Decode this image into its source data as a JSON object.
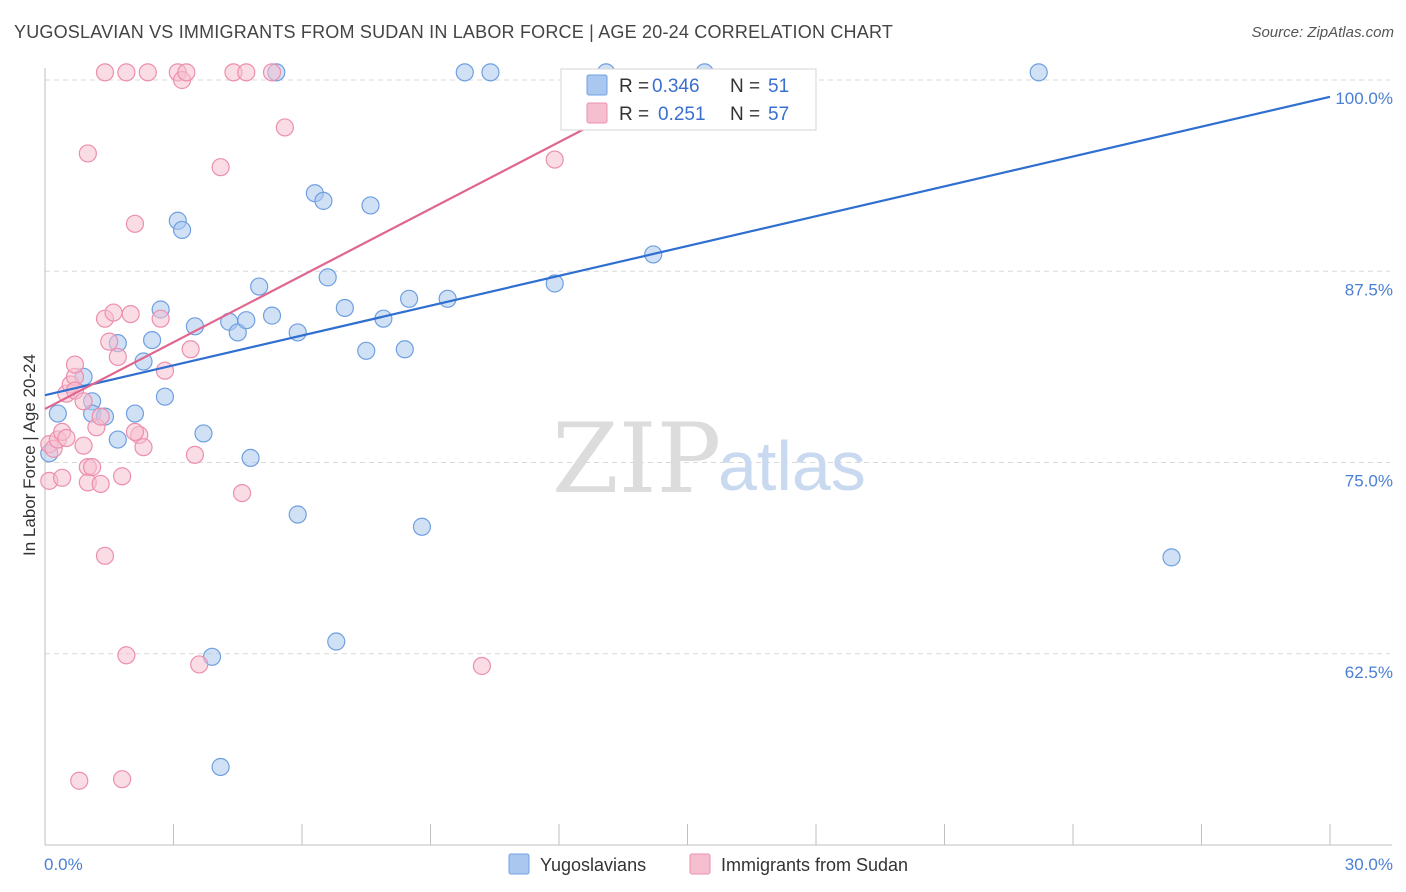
{
  "title": "YUGOSLAVIAN VS IMMIGRANTS FROM SUDAN IN LABOR FORCE | AGE 20-24 CORRELATION CHART",
  "source": "Source: ZipAtlas.com",
  "watermark": {
    "zip": "ZIP",
    "atlas": "atlas"
  },
  "stats": {
    "r_label": "R =",
    "n_label": "N =",
    "rows": [
      {
        "r": "0.346",
        "n": "51"
      },
      {
        "r": "0.251",
        "n": "57"
      }
    ]
  },
  "colors": {
    "blue_fill": "#aac8ef",
    "blue_stroke": "#6f9fe0",
    "blue_line": "#2f6fcf",
    "pink_fill": "#f6bfd0",
    "pink_stroke": "#ec8fae",
    "pink_line": "#e0668f",
    "grid": "#d8d8d8",
    "axis_text": "#4a7fd4"
  },
  "chart_data": {
    "type": "scatter",
    "ylabel": "In Labor Force | Age 20-24",
    "xlim": [
      0,
      30
    ],
    "ylim": [
      50,
      100
    ],
    "x_tick_labels": [
      "0.0%",
      "30.0%"
    ],
    "y_ticks": [
      {
        "value": 62.5,
        "label": "62.5%"
      },
      {
        "value": 75.0,
        "label": "75.0%"
      },
      {
        "value": 87.5,
        "label": "87.5%"
      },
      {
        "value": 100.0,
        "label": "100.0%"
      }
    ],
    "grid": "horizontal-dashed",
    "series": [
      {
        "name": "Yugoslavians",
        "color": "blue",
        "trend": {
          "x": [
            0,
            30
          ],
          "y": [
            79.4,
            98.9
          ]
        },
        "points": [
          [
            0.1,
            75.6
          ],
          [
            0.3,
            78.2
          ],
          [
            0.9,
            80.6
          ],
          [
            1.1,
            79.0
          ],
          [
            1.1,
            78.2
          ],
          [
            1.4,
            78.0
          ],
          [
            1.7,
            76.5
          ],
          [
            1.7,
            82.8
          ],
          [
            2.1,
            78.2
          ],
          [
            2.3,
            81.6
          ],
          [
            2.5,
            83.0
          ],
          [
            2.7,
            85.0
          ],
          [
            2.8,
            79.3
          ],
          [
            3.1,
            90.8
          ],
          [
            3.2,
            90.2
          ],
          [
            3.5,
            83.9
          ],
          [
            3.7,
            76.9
          ],
          [
            3.9,
            62.3
          ],
          [
            4.1,
            55.1
          ],
          [
            4.3,
            84.2
          ],
          [
            4.5,
            83.5
          ],
          [
            4.7,
            84.3
          ],
          [
            4.8,
            75.3
          ],
          [
            5.0,
            86.5
          ],
          [
            5.3,
            84.6
          ],
          [
            5.4,
            100.5
          ],
          [
            5.9,
            83.5
          ],
          [
            5.9,
            71.6
          ],
          [
            6.3,
            92.6
          ],
          [
            6.5,
            92.1
          ],
          [
            6.6,
            87.1
          ],
          [
            6.8,
            63.3
          ],
          [
            7.0,
            85.1
          ],
          [
            7.5,
            82.3
          ],
          [
            7.6,
            91.8
          ],
          [
            7.9,
            84.4
          ],
          [
            8.4,
            82.4
          ],
          [
            8.5,
            85.7
          ],
          [
            8.8,
            70.8
          ],
          [
            9.4,
            85.7
          ],
          [
            9.8,
            100.5
          ],
          [
            10.4,
            100.5
          ],
          [
            11.9,
            86.7
          ],
          [
            13.1,
            100.5
          ],
          [
            14.2,
            88.6
          ],
          [
            15.4,
            100.5
          ],
          [
            23.2,
            100.5
          ],
          [
            26.3,
            68.8
          ]
        ]
      },
      {
        "name": "Immigrants from Sudan",
        "color": "pink",
        "trend": {
          "x": [
            0,
            15.0
          ],
          "y": [
            78.5,
            100.3
          ]
        },
        "points": [
          [
            0.1,
            73.8
          ],
          [
            0.1,
            76.2
          ],
          [
            0.2,
            75.9
          ],
          [
            0.3,
            76.5
          ],
          [
            0.4,
            77.0
          ],
          [
            0.4,
            74.0
          ],
          [
            0.5,
            76.6
          ],
          [
            0.5,
            79.5
          ],
          [
            0.6,
            80.1
          ],
          [
            0.7,
            80.6
          ],
          [
            0.7,
            79.7
          ],
          [
            0.7,
            81.4
          ],
          [
            0.8,
            54.2
          ],
          [
            0.9,
            76.1
          ],
          [
            0.9,
            79.0
          ],
          [
            1.0,
            74.7
          ],
          [
            1.0,
            95.2
          ],
          [
            1.0,
            73.7
          ],
          [
            1.1,
            74.7
          ],
          [
            1.2,
            77.3
          ],
          [
            1.3,
            73.6
          ],
          [
            1.3,
            78.0
          ],
          [
            1.4,
            68.9
          ],
          [
            1.4,
            84.4
          ],
          [
            1.4,
            100.5
          ],
          [
            1.5,
            82.9
          ],
          [
            1.6,
            84.8
          ],
          [
            1.7,
            81.9
          ],
          [
            1.8,
            74.1
          ],
          [
            1.8,
            54.3
          ],
          [
            1.9,
            62.4
          ],
          [
            1.9,
            100.5
          ],
          [
            2.0,
            84.7
          ],
          [
            2.1,
            90.6
          ],
          [
            2.2,
            76.8
          ],
          [
            2.3,
            76.0
          ],
          [
            2.4,
            100.5
          ],
          [
            2.1,
            77.0
          ],
          [
            2.7,
            84.4
          ],
          [
            2.8,
            81.0
          ],
          [
            3.1,
            100.5
          ],
          [
            3.2,
            100.0
          ],
          [
            3.3,
            100.5
          ],
          [
            3.4,
            82.4
          ],
          [
            3.5,
            75.5
          ],
          [
            3.6,
            61.8
          ],
          [
            4.1,
            94.3
          ],
          [
            4.4,
            100.5
          ],
          [
            4.6,
            73.0
          ],
          [
            4.7,
            100.5
          ],
          [
            5.3,
            100.5
          ],
          [
            5.6,
            96.9
          ],
          [
            10.2,
            61.7
          ],
          [
            11.9,
            94.8
          ]
        ]
      }
    ]
  },
  "legend": {
    "items": [
      {
        "label": "Yugoslavians",
        "color": "blue"
      },
      {
        "label": "Immigrants from Sudan",
        "color": "pink"
      }
    ]
  }
}
